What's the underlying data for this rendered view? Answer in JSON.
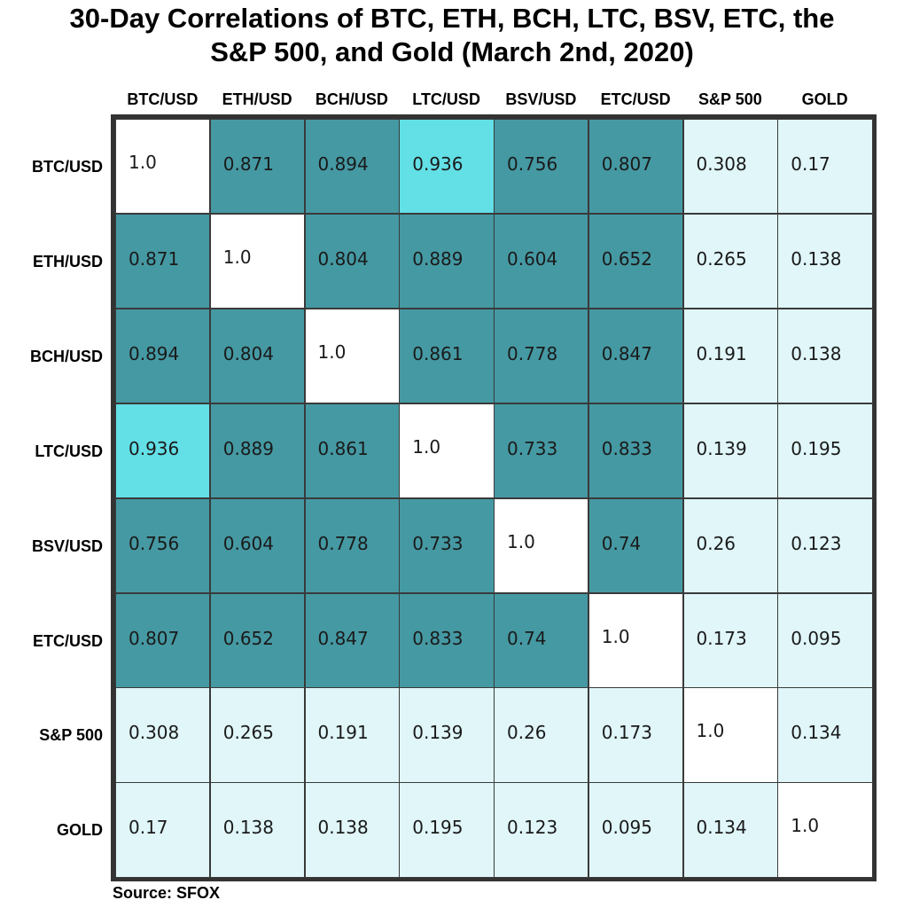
{
  "title_line1": "30-Day Correlations of BTC, ETH, BCH, LTC, BSV, ETC, the",
  "title_line2": "S&P 500, and Gold (March 2nd, 2020)",
  "source": "Source: SFOX",
  "colors": {
    "high": "#4599a3",
    "highest": "#63dfe6",
    "low": "#e0f6f9",
    "diagonal": "#ffffff"
  },
  "chart_data": {
    "type": "heatmap",
    "x_labels": [
      "BTC/USD",
      "ETH/USD",
      "BCH/USD",
      "LTC/USD",
      "BSV/USD",
      "ETC/USD",
      "S&P 500",
      "GOLD"
    ],
    "y_labels": [
      "BTC/USD",
      "ETH/USD",
      "BCH/USD",
      "LTC/USD",
      "BSV/USD",
      "ETC/USD",
      "S&P 500",
      "GOLD"
    ],
    "values": [
      [
        "1.0",
        "0.871",
        "0.894",
        "0.936",
        "0.756",
        "0.807",
        "0.308",
        "0.17"
      ],
      [
        "0.871",
        "1.0",
        "0.804",
        "0.889",
        "0.604",
        "0.652",
        "0.265",
        "0.138"
      ],
      [
        "0.894",
        "0.804",
        "1.0",
        "0.861",
        "0.778",
        "0.847",
        "0.191",
        "0.138"
      ],
      [
        "0.936",
        "0.889",
        "0.861",
        "1.0",
        "0.733",
        "0.833",
        "0.139",
        "0.195"
      ],
      [
        "0.756",
        "0.604",
        "0.778",
        "0.733",
        "1.0",
        "0.74",
        "0.26",
        "0.123"
      ],
      [
        "0.807",
        "0.652",
        "0.847",
        "0.833",
        "0.74",
        "1.0",
        "0.173",
        "0.095"
      ],
      [
        "0.308",
        "0.265",
        "0.191",
        "0.139",
        "0.26",
        "0.173",
        "1.0",
        "0.134"
      ],
      [
        "0.17",
        "0.138",
        "0.138",
        "0.195",
        "0.123",
        "0.095",
        "0.134",
        "1.0"
      ]
    ]
  }
}
